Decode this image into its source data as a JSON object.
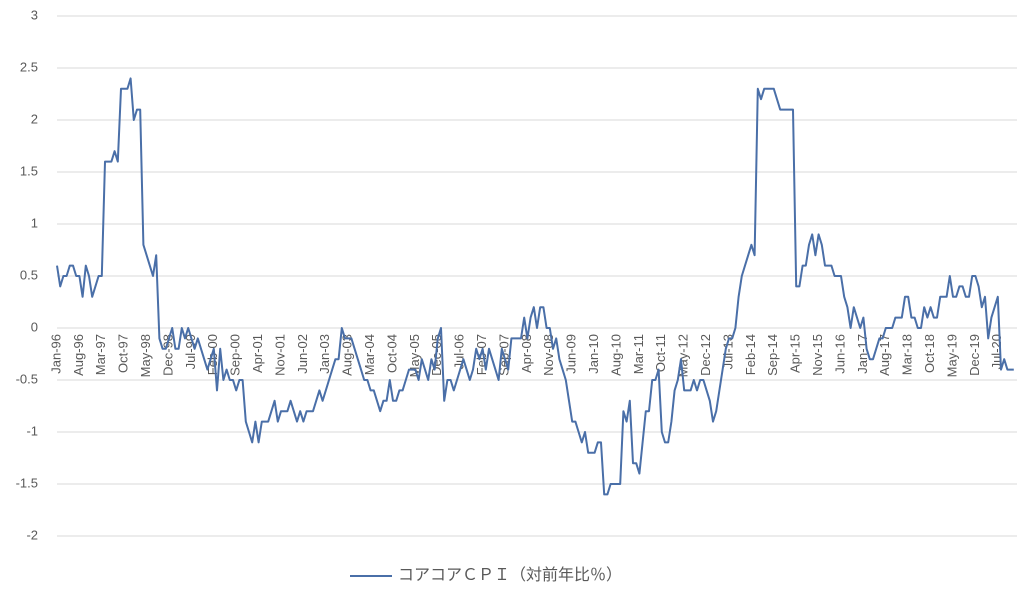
{
  "chart_data": {
    "type": "line",
    "categories": [
      "Jan-96",
      null,
      null,
      null,
      null,
      null,
      null,
      "Aug-96",
      null,
      null,
      null,
      null,
      null,
      null,
      "Mar-97",
      null,
      null,
      null,
      null,
      null,
      null,
      "Oct-97",
      null,
      null,
      null,
      null,
      null,
      null,
      "May-98",
      null,
      null,
      null,
      null,
      null,
      null,
      "Dec-98",
      null,
      null,
      null,
      null,
      null,
      null,
      "Jul-99",
      null,
      null,
      null,
      null,
      null,
      null,
      "Feb-00",
      null,
      null,
      null,
      null,
      null,
      null,
      "Sep-00",
      null,
      null,
      null,
      null,
      null,
      null,
      "Apr-01",
      null,
      null,
      null,
      null,
      null,
      null,
      "Nov-01",
      null,
      null,
      null,
      null,
      null,
      null,
      "Jun-02",
      null,
      null,
      null,
      null,
      null,
      null,
      "Jan-03",
      null,
      null,
      null,
      null,
      null,
      null,
      "Aug-03",
      null,
      null,
      null,
      null,
      null,
      null,
      "Mar-04",
      null,
      null,
      null,
      null,
      null,
      null,
      "Oct-04",
      null,
      null,
      null,
      null,
      null,
      null,
      "May-05",
      null,
      null,
      null,
      null,
      null,
      null,
      "Dec-05",
      null,
      null,
      null,
      null,
      null,
      null,
      "Jul-06",
      null,
      null,
      null,
      null,
      null,
      null,
      "Feb-07",
      null,
      null,
      null,
      null,
      null,
      null,
      "Sep-07",
      null,
      null,
      null,
      null,
      null,
      null,
      "Apr-08",
      null,
      null,
      null,
      null,
      null,
      null,
      "Nov-08",
      null,
      null,
      null,
      null,
      null,
      null,
      "Jun-09",
      null,
      null,
      null,
      null,
      null,
      null,
      "Jan-10",
      null,
      null,
      null,
      null,
      null,
      null,
      "Aug-10",
      null,
      null,
      null,
      null,
      null,
      null,
      "Mar-11",
      null,
      null,
      null,
      null,
      null,
      null,
      "Oct-11",
      null,
      null,
      null,
      null,
      null,
      null,
      "May-12",
      null,
      null,
      null,
      null,
      null,
      null,
      "Dec-12",
      null,
      null,
      null,
      null,
      null,
      null,
      "Jul-13",
      null,
      null,
      null,
      null,
      null,
      null,
      "Feb-14",
      null,
      null,
      null,
      null,
      null,
      null,
      "Sep-14",
      null,
      null,
      null,
      null,
      null,
      null,
      "Apr-15",
      null,
      null,
      null,
      null,
      null,
      null,
      "Nov-15",
      null,
      null,
      null,
      null,
      null,
      null,
      "Jun-16",
      null,
      null,
      null,
      null,
      null,
      null,
      "Jan-17",
      null,
      null,
      null,
      null,
      null,
      null,
      "Aug-17",
      null,
      null,
      null,
      null,
      null,
      null,
      "Mar-18",
      null,
      null,
      null,
      null,
      null,
      null,
      "Oct-18",
      null,
      null,
      null,
      null,
      null,
      null,
      "May-19",
      null,
      null,
      null,
      null,
      null,
      null,
      "Dec-19",
      null,
      null,
      null,
      null,
      null,
      null,
      "Jul-20",
      null,
      null,
      null,
      null,
      null
    ],
    "series": [
      {
        "name": "コアコアＣＰＩ（対前年比％）",
        "color": "#4a6fa8",
        "values": [
          0.6,
          0.4,
          0.5,
          0.5,
          0.6,
          0.6,
          0.5,
          0.5,
          0.3,
          0.6,
          0.5,
          0.3,
          0.4,
          0.5,
          0.5,
          1.6,
          1.6,
          1.6,
          1.7,
          1.6,
          2.3,
          2.3,
          2.3,
          2.4,
          2.0,
          2.1,
          2.1,
          0.8,
          0.7,
          0.6,
          0.5,
          0.7,
          -0.1,
          -0.2,
          -0.2,
          -0.1,
          0,
          -0.2,
          -0.2,
          0,
          -0.1,
          0,
          -0.1,
          -0.2,
          -0.1,
          -0.2,
          -0.3,
          -0.4,
          -0.3,
          -0.2,
          -0.6,
          -0.2,
          -0.5,
          -0.4,
          -0.5,
          -0.5,
          -0.6,
          -0.5,
          -0.5,
          -0.9,
          -1.0,
          -1.1,
          -0.9,
          -1.1,
          -0.9,
          -0.9,
          -0.9,
          -0.8,
          -0.7,
          -0.9,
          -0.8,
          -0.8,
          -0.8,
          -0.7,
          -0.8,
          -0.9,
          -0.8,
          -0.9,
          -0.8,
          -0.8,
          -0.8,
          -0.7,
          -0.6,
          -0.7,
          -0.6,
          -0.5,
          -0.4,
          -0.3,
          -0.3,
          0,
          -0.1,
          -0.1,
          -0.1,
          -0.2,
          -0.3,
          -0.4,
          -0.5,
          -0.5,
          -0.6,
          -0.6,
          -0.7,
          -0.8,
          -0.7,
          -0.7,
          -0.5,
          -0.7,
          -0.7,
          -0.6,
          -0.6,
          -0.5,
          -0.4,
          -0.4,
          -0.4,
          -0.5,
          -0.3,
          -0.4,
          -0.5,
          -0.3,
          -0.4,
          -0.1,
          0,
          -0.7,
          -0.5,
          -0.5,
          -0.6,
          -0.5,
          -0.4,
          -0.3,
          -0.4,
          -0.5,
          -0.4,
          -0.2,
          -0.3,
          -0.2,
          -0.4,
          -0.2,
          -0.3,
          -0.4,
          -0.5,
          -0.2,
          -0.3,
          -0.4,
          -0.1,
          -0.1,
          -0.1,
          -0.1,
          0.1,
          -0.1,
          0.1,
          0.2,
          0,
          0.2,
          0.2,
          0,
          0,
          -0.2,
          -0.1,
          -0.3,
          -0.4,
          -0.5,
          -0.7,
          -0.9,
          -0.9,
          -1.0,
          -1.1,
          -1.0,
          -1.2,
          -1.2,
          -1.2,
          -1.1,
          -1.1,
          -1.6,
          -1.6,
          -1.5,
          -1.5,
          -1.5,
          -1.5,
          -0.8,
          -0.9,
          -0.7,
          -1.3,
          -1.3,
          -1.4,
          -1.1,
          -0.8,
          -0.8,
          -0.5,
          -0.5,
          -0.4,
          -1.0,
          -1.1,
          -1.1,
          -0.9,
          -0.6,
          -0.5,
          -0.3,
          -0.6,
          -0.6,
          -0.6,
          -0.5,
          -0.6,
          -0.5,
          -0.5,
          -0.6,
          -0.7,
          -0.9,
          -0.8,
          -0.6,
          -0.4,
          -0.2,
          -0.1,
          -0.1,
          0,
          0.3,
          0.5,
          0.6,
          0.7,
          0.8,
          0.7,
          2.3,
          2.2,
          2.3,
          2.3,
          2.3,
          2.3,
          2.2,
          2.1,
          2.1,
          2.1,
          2.1,
          2.1,
          0.4,
          0.4,
          0.6,
          0.6,
          0.8,
          0.9,
          0.7,
          0.9,
          0.8,
          0.6,
          0.6,
          0.6,
          0.5,
          0.5,
          0.5,
          0.3,
          0.2,
          0,
          0.2,
          0.1,
          0,
          0.1,
          -0.2,
          -0.3,
          -0.3,
          -0.2,
          -0.1,
          -0.1,
          0,
          0,
          0,
          0.1,
          0.1,
          0.1,
          0.3,
          0.3,
          0.1,
          0.1,
          0,
          0,
          0.2,
          0.1,
          0.2,
          0.1,
          0.1,
          0.3,
          0.3,
          0.3,
          0.5,
          0.3,
          0.3,
          0.4,
          0.4,
          0.3,
          0.3,
          0.5,
          0.5,
          0.4,
          0.2,
          0.3,
          -0.1,
          0.1,
          0.2,
          0.3,
          -0.4,
          -0.3,
          -0.4,
          -0.4,
          -0.4
        ]
      }
    ],
    "ylim": [
      -2,
      3
    ],
    "yticks": [
      -2,
      -1.5,
      -1,
      -0.5,
      0,
      0.5,
      1,
      1.5,
      2,
      2.5,
      3
    ],
    "grid": true,
    "legend": "bottom"
  }
}
